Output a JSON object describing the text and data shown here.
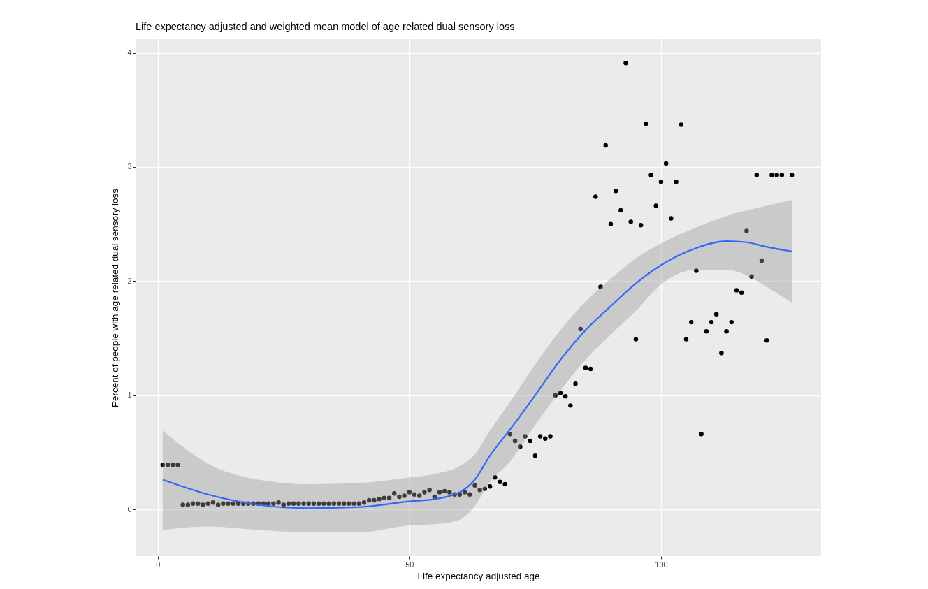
{
  "chart_data": {
    "type": "scatter",
    "title": "Life expectancy adjusted and weighted mean model of age related dual sensory loss",
    "xlabel": "Life expectancy adjusted age",
    "ylabel": "Percent of people with age related dual sensory loss",
    "xlim": [
      -4.4,
      131.8
    ],
    "ylim": [
      -0.41,
      4.12
    ],
    "xticks": [
      0,
      50,
      100
    ],
    "yticks": [
      0,
      1,
      2,
      3,
      4
    ],
    "grid": true,
    "series": [
      {
        "marker": "circle",
        "color": "#000000",
        "x": [
          1,
          2,
          3,
          4,
          5,
          6,
          7,
          8,
          9,
          10,
          11,
          12,
          13,
          14,
          15,
          16,
          17,
          18,
          19,
          20,
          21,
          22,
          23,
          24,
          25,
          26,
          27,
          28,
          29,
          30,
          31,
          32,
          33,
          34,
          35,
          36,
          37,
          38,
          39,
          40,
          41,
          42,
          43,
          44,
          45,
          46,
          47,
          48,
          49,
          50,
          51,
          52,
          53,
          54,
          55,
          56,
          57,
          58,
          59,
          60,
          61,
          62,
          63,
          64,
          65,
          66,
          67,
          68,
          69,
          70,
          71,
          72,
          73,
          74,
          75,
          76,
          77,
          78,
          79,
          80,
          81,
          82,
          83,
          84,
          85,
          86,
          87,
          88,
          89,
          90,
          91,
          92,
          93,
          94,
          95,
          96,
          97,
          98,
          99,
          100,
          101,
          102,
          103,
          104,
          105,
          106,
          107,
          108,
          109,
          110,
          111,
          112,
          113,
          114,
          115,
          116,
          117,
          118,
          119,
          120,
          121,
          122,
          123,
          124,
          126
        ],
        "values": [
          0.39,
          0.39,
          0.39,
          0.39,
          0.04,
          0.04,
          0.05,
          0.05,
          0.04,
          0.05,
          0.06,
          0.04,
          0.05,
          0.05,
          0.05,
          0.05,
          0.05,
          0.05,
          0.05,
          0.05,
          0.05,
          0.05,
          0.05,
          0.06,
          0.04,
          0.05,
          0.05,
          0.05,
          0.05,
          0.05,
          0.05,
          0.05,
          0.05,
          0.05,
          0.05,
          0.05,
          0.05,
          0.05,
          0.05,
          0.05,
          0.06,
          0.08,
          0.08,
          0.09,
          0.1,
          0.1,
          0.14,
          0.11,
          0.12,
          0.15,
          0.13,
          0.12,
          0.15,
          0.17,
          0.11,
          0.15,
          0.16,
          0.15,
          0.13,
          0.13,
          0.15,
          0.13,
          0.21,
          0.17,
          0.18,
          0.2,
          0.28,
          0.24,
          0.22,
          0.66,
          0.6,
          0.55,
          0.64,
          0.6,
          0.47,
          0.64,
          0.62,
          0.64,
          1.0,
          1.02,
          0.99,
          0.91,
          1.1,
          1.58,
          1.24,
          1.23,
          2.74,
          1.95,
          3.19,
          2.5,
          2.79,
          2.62,
          3.91,
          2.52,
          1.49,
          2.49,
          3.38,
          2.93,
          2.66,
          2.87,
          3.03,
          2.55,
          2.87,
          3.37,
          1.49,
          1.64,
          2.09,
          0.66,
          1.56,
          1.64,
          1.71,
          1.37,
          1.56,
          1.64,
          1.92,
          1.9,
          2.44,
          2.04,
          2.93,
          2.18,
          1.48,
          2.93,
          2.93,
          2.93,
          2.93
        ]
      },
      {
        "type": "line",
        "color": "#3366ff",
        "x": [
          1,
          10,
          20,
          30,
          40,
          50,
          55,
          60,
          63,
          66,
          70,
          75,
          80,
          85,
          90,
          95,
          100,
          107,
          113,
          117,
          121,
          126
        ],
        "values": [
          0.26,
          0.13,
          0.04,
          0.01,
          0.02,
          0.07,
          0.09,
          0.15,
          0.26,
          0.47,
          0.7,
          1.0,
          1.31,
          1.57,
          1.78,
          1.98,
          2.14,
          2.29,
          2.35,
          2.34,
          2.3,
          2.26
        ],
        "lower": [
          -0.18,
          -0.15,
          -0.18,
          -0.2,
          -0.2,
          -0.14,
          -0.13,
          -0.09,
          0.03,
          0.24,
          0.42,
          0.74,
          1.04,
          1.31,
          1.53,
          1.74,
          1.97,
          2.1,
          2.1,
          2.05,
          1.95,
          1.81
        ],
        "upper": [
          0.69,
          0.4,
          0.26,
          0.22,
          0.23,
          0.28,
          0.31,
          0.38,
          0.48,
          0.69,
          0.94,
          1.27,
          1.57,
          1.82,
          2.02,
          2.2,
          2.33,
          2.47,
          2.57,
          2.62,
          2.66,
          2.71
        ]
      }
    ]
  }
}
